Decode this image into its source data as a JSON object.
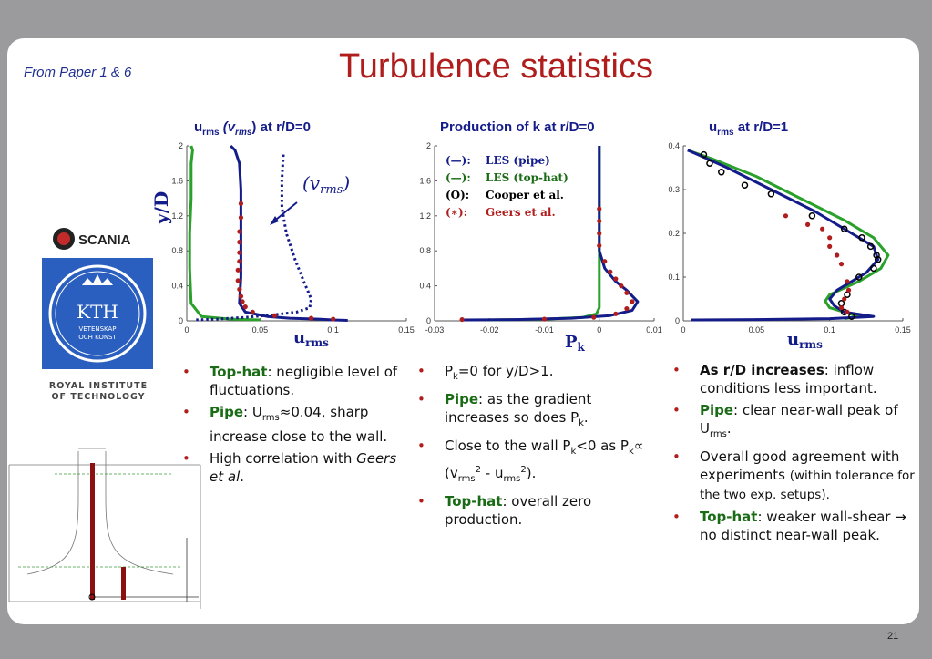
{
  "note": "From Paper 1 & 6",
  "title": "Turbulence statistics",
  "panel_titles": {
    "p1_sym": "u",
    "p1_sub": "rms",
    "p1_mid": " (v",
    "p1_mid_sub": "rms",
    "p1_rest": ") at r/D=0",
    "p2": "Production of k at r/D=0",
    "p3_sym": "u",
    "p3_sub": "rms",
    "p3_rest": " at r/D=1"
  },
  "plots": {
    "ylabel": "y/D",
    "vrms_annot": "(v",
    "vrms_annot_sub": "rms",
    "vrms_annot_end": ")",
    "p1_xlabel": "u",
    "p1_xlabel_sub": "rms",
    "p2_xlabel": "P",
    "p2_xlabel_sub": "k",
    "p3_xlabel": "u",
    "p3_xlabel_sub": "rms",
    "legend": [
      {
        "sym": "(—):",
        "text": "LES (pipe)",
        "color": "#141c8a"
      },
      {
        "sym": "(—):",
        "text": "LES (top-hat)",
        "color": "#1a6b15"
      },
      {
        "sym": "(O):",
        "text": "Cooper et al.",
        "color": "#000000"
      },
      {
        "sym": "(∗):",
        "text": "Geers et al.",
        "color": "#b01d1d"
      }
    ],
    "colors": {
      "pipe": "#141c8a",
      "tophat": "#2aa12a",
      "geers": "#b01d1d",
      "cooper": "#000000"
    }
  },
  "chart_data": [
    {
      "type": "line",
      "title": "urms (vrms) at r/D=0",
      "xlabel": "urms",
      "ylabel": "y/D",
      "xlim": [
        0,
        0.15
      ],
      "ylim": [
        0,
        2
      ],
      "xticks": [
        "0",
        "0.05",
        "0.1",
        "0.15"
      ],
      "yticks": [
        "0",
        "0.4",
        "0.8",
        "1.2",
        "1.6",
        "2"
      ],
      "series": [
        {
          "name": "LES (top-hat)",
          "kind": "line",
          "x": [
            0.003,
            0.004,
            0.003,
            0.003,
            0.002,
            0.002,
            0.003,
            0.01,
            0.03,
            0.05
          ],
          "y": [
            2.0,
            1.95,
            1.8,
            1.4,
            1.0,
            0.6,
            0.2,
            0.05,
            0.02,
            0.01
          ]
        },
        {
          "name": "LES (pipe)",
          "kind": "line",
          "x": [
            0.03,
            0.033,
            0.036,
            0.037,
            0.037,
            0.037,
            0.037,
            0.036,
            0.04,
            0.055,
            0.07,
            0.09,
            0.1,
            0.11
          ],
          "y": [
            2.0,
            1.95,
            1.8,
            1.5,
            1.2,
            0.8,
            0.5,
            0.2,
            0.1,
            0.05,
            0.03,
            0.02,
            0.01,
            0.005
          ]
        },
        {
          "name": "vrms (pipe)",
          "kind": "dotted",
          "x": [
            0.066,
            0.065,
            0.065,
            0.068,
            0.074,
            0.08,
            0.085,
            0.084,
            0.075,
            0.06,
            0.04,
            0.02,
            0.005
          ],
          "y": [
            1.9,
            1.6,
            1.3,
            1.0,
            0.7,
            0.45,
            0.25,
            0.15,
            0.1,
            0.07,
            0.04,
            0.02,
            0.01
          ]
        },
        {
          "name": "Geers et al.",
          "kind": "marker",
          "x": [
            0.037,
            0.037,
            0.036,
            0.036,
            0.036,
            0.036,
            0.035,
            0.035,
            0.036,
            0.037,
            0.038,
            0.04,
            0.045,
            0.06,
            0.085,
            0.1
          ],
          "y": [
            1.34,
            1.18,
            1.02,
            0.9,
            0.78,
            0.68,
            0.58,
            0.46,
            0.36,
            0.28,
            0.22,
            0.16,
            0.1,
            0.06,
            0.03,
            0.02
          ]
        }
      ]
    },
    {
      "type": "line",
      "title": "Production of k at r/D=0",
      "xlabel": "Pk",
      "ylabel": "y/D",
      "xlim": [
        -0.03,
        0.01
      ],
      "ylim": [
        0,
        2
      ],
      "xticks": [
        "-0.03",
        "-0.02",
        "-0.01",
        "0",
        "0.01"
      ],
      "yticks": [
        "0",
        "0.4",
        "0.8",
        "1.2",
        "1.6",
        "2"
      ],
      "series": [
        {
          "name": "LES (top-hat)",
          "kind": "line",
          "x": [
            0,
            0,
            0,
            0,
            0,
            0,
            0,
            -0.0005,
            -0.003,
            -0.01,
            -0.02
          ],
          "y": [
            2.0,
            1.6,
            1.2,
            0.8,
            0.5,
            0.3,
            0.15,
            0.08,
            0.04,
            0.02,
            0.01
          ]
        },
        {
          "name": "LES (pipe)",
          "kind": "line",
          "x": [
            0,
            0,
            0,
            0,
            0.001,
            0.003,
            0.005,
            0.007,
            0.006,
            0.002,
            -0.005,
            -0.015,
            -0.025
          ],
          "y": [
            2.0,
            1.6,
            1.2,
            0.8,
            0.6,
            0.45,
            0.35,
            0.22,
            0.12,
            0.06,
            0.03,
            0.015,
            0.01
          ]
        },
        {
          "name": "Geers et al.",
          "kind": "marker",
          "x": [
            0,
            0,
            0,
            0,
            0.001,
            0.002,
            0.003,
            0.004,
            0.005,
            0.006,
            0.005,
            0.003,
            -0.001,
            -0.01,
            -0.025
          ],
          "y": [
            1.28,
            1.14,
            1.0,
            0.86,
            0.68,
            0.56,
            0.48,
            0.4,
            0.32,
            0.22,
            0.14,
            0.08,
            0.04,
            0.02,
            0.015
          ]
        }
      ]
    },
    {
      "type": "line",
      "title": "urms at r/D=1",
      "xlabel": "urms",
      "ylabel": "",
      "xlim": [
        0,
        0.15
      ],
      "ylim": [
        0,
        0.4
      ],
      "xticks": [
        "0",
        "0.05",
        "0.1",
        "0.15"
      ],
      "yticks": [
        "0",
        "0.1",
        "0.2",
        "0.3",
        "0.4"
      ],
      "series": [
        {
          "name": "LES (top-hat)",
          "kind": "line",
          "x": [
            0.003,
            0.02,
            0.05,
            0.08,
            0.11,
            0.13,
            0.14,
            0.135,
            0.12,
            0.11,
            0.1,
            0.097,
            0.1,
            0.11,
            0.12,
            0.11
          ],
          "y": [
            0.39,
            0.37,
            0.33,
            0.28,
            0.23,
            0.19,
            0.15,
            0.12,
            0.09,
            0.075,
            0.06,
            0.045,
            0.03,
            0.02,
            0.01,
            0.005
          ]
        },
        {
          "name": "LES (pipe)",
          "kind": "line",
          "x": [
            0.003,
            0.01,
            0.03,
            0.06,
            0.09,
            0.115,
            0.13,
            0.133,
            0.125,
            0.115,
            0.105,
            0.1,
            0.103,
            0.11,
            0.13,
            0.1,
            0.05,
            0.005
          ],
          "y": [
            0.39,
            0.38,
            0.35,
            0.3,
            0.25,
            0.2,
            0.17,
            0.14,
            0.11,
            0.09,
            0.07,
            0.05,
            0.035,
            0.02,
            0.01,
            0.005,
            0.003,
            0.002
          ]
        },
        {
          "name": "Cooper et al.",
          "kind": "circle",
          "x": [
            0.014,
            0.018,
            0.026,
            0.042,
            0.06,
            0.088,
            0.11,
            0.122,
            0.128,
            0.132,
            0.133,
            0.13,
            0.12,
            0.112,
            0.108,
            0.11,
            0.115
          ],
          "y": [
            0.38,
            0.36,
            0.34,
            0.31,
            0.29,
            0.24,
            0.21,
            0.19,
            0.17,
            0.15,
            0.14,
            0.12,
            0.1,
            0.06,
            0.04,
            0.02,
            0.01
          ]
        },
        {
          "name": "Geers et al.",
          "kind": "marker",
          "x": [
            0.07,
            0.085,
            0.095,
            0.1,
            0.1,
            0.105,
            0.108,
            0.112,
            0.113,
            0.11,
            0.108,
            0.112
          ],
          "y": [
            0.24,
            0.22,
            0.21,
            0.19,
            0.17,
            0.15,
            0.13,
            0.09,
            0.07,
            0.05,
            0.03,
            0.02
          ]
        }
      ]
    }
  ],
  "bullets_left": [
    {
      "parts": [
        {
          "t": "Top-hat",
          "c": "g"
        },
        {
          "t": ": negligible level of fluctuations."
        }
      ]
    },
    {
      "parts": [
        {
          "t": "Pipe",
          "c": "g"
        },
        {
          "t": ": U"
        },
        {
          "t": "rms",
          "c": "sub"
        },
        {
          "t": "≈0.04, sharp increase close to the wall."
        }
      ]
    },
    {
      "parts": [
        {
          "t": "High correlation with "
        },
        {
          "t": "Geers et al",
          "c": "i"
        },
        {
          "t": "."
        }
      ]
    }
  ],
  "bullets_mid": [
    {
      "parts": [
        {
          "t": "P"
        },
        {
          "t": "k",
          "c": "sub"
        },
        {
          "t": "=0 for y/D>1."
        }
      ]
    },
    {
      "parts": [
        {
          "t": "Pipe",
          "c": "g"
        },
        {
          "t": ": as the gradient increases so does P"
        },
        {
          "t": "k",
          "c": "sub"
        },
        {
          "t": "."
        }
      ]
    },
    {
      "parts": [
        {
          "t": "Close to the wall P"
        },
        {
          "t": "k",
          "c": "sub"
        },
        {
          "t": "<0 as P"
        },
        {
          "t": "k",
          "c": "sub"
        },
        {
          "t": "∝ (v"
        },
        {
          "t": "rms",
          "c": "sub"
        },
        {
          "t": "2",
          "c": "sup"
        },
        {
          "t": " - u"
        },
        {
          "t": "rms",
          "c": "sub"
        },
        {
          "t": "2",
          "c": "sup"
        },
        {
          "t": ")."
        }
      ]
    },
    {
      "parts": [
        {
          "t": "Top-hat",
          "c": "g"
        },
        {
          "t": ": overall zero production."
        }
      ]
    }
  ],
  "bullets_right": [
    {
      "parts": [
        {
          "t": "As r/D increases",
          "c": "b"
        },
        {
          "t": ": inflow conditions less important."
        }
      ]
    },
    {
      "parts": [
        {
          "t": "Pipe",
          "c": "g"
        },
        {
          "t": ": clear near-wall peak of U"
        },
        {
          "t": "rms",
          "c": "sub"
        },
        {
          "t": "."
        }
      ]
    },
    {
      "parts": [
        {
          "t": "Overall good agreement with experiments "
        },
        {
          "t": "(within tolerance for the two exp. setups).",
          "c": "sm"
        }
      ]
    },
    {
      "parts": [
        {
          "t": "Top-hat",
          "c": "g"
        },
        {
          "t": ": weaker wall-shear → no distinct near-wall peak."
        }
      ]
    }
  ],
  "logos": {
    "scania": "SCANIA",
    "kth": "KTH",
    "kth_sub1": "VETENSKAP",
    "kth_sub2": "OCH KONST",
    "kth_name1": "ROYAL INSTITUTE",
    "kth_name2": "OF TECHNOLOGY"
  },
  "page_number": "21"
}
